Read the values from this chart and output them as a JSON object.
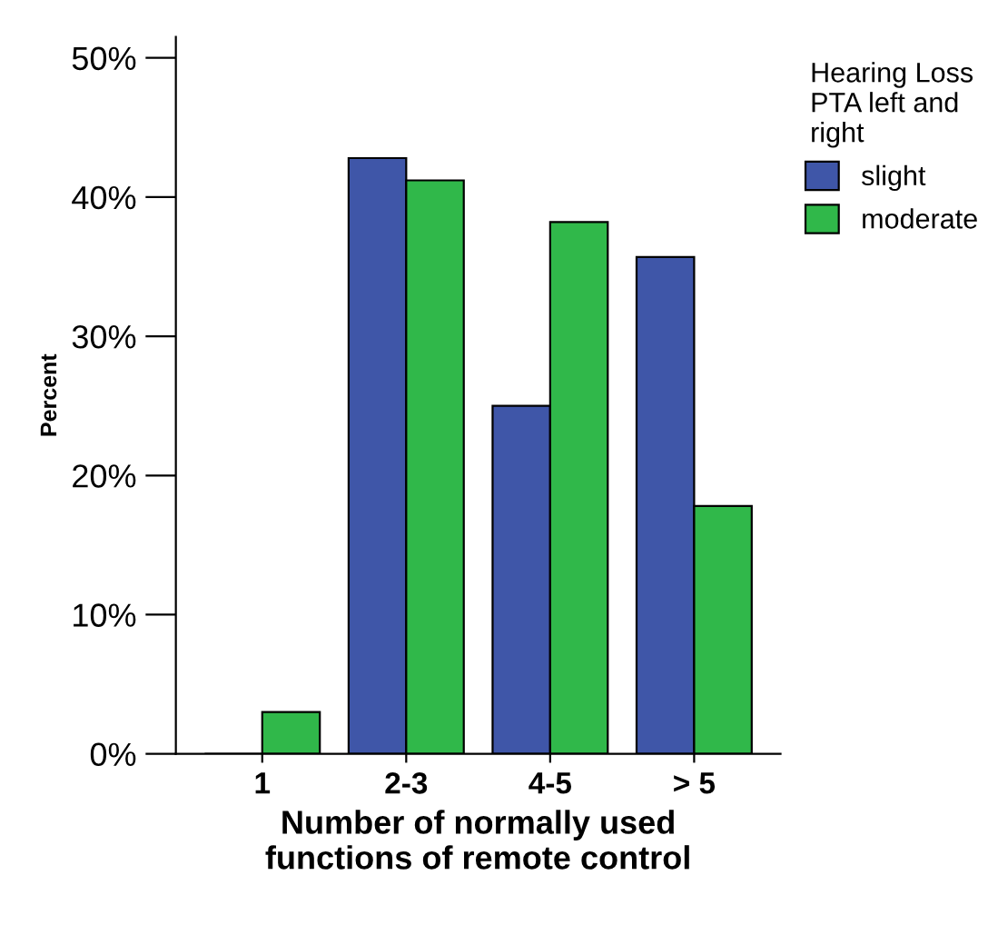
{
  "chart_data": {
    "type": "bar",
    "xlabel": "Number of normally used\nfunctions of remote control",
    "ylabel": "Percent",
    "legend_title": "Hearing Loss\nPTA left and\nright",
    "categories": [
      "1",
      "2-3",
      "4-5",
      "> 5"
    ],
    "series": [
      {
        "name": "slight",
        "color": "#3f56a8",
        "values": [
          0,
          42.8,
          25.0,
          35.7
        ]
      },
      {
        "name": "moderate",
        "color": "#30b84a",
        "values": [
          3.0,
          41.2,
          38.2,
          17.8
        ]
      }
    ],
    "ylim": [
      0,
      51.5
    ],
    "yticks": [
      {
        "value": 0,
        "label": "0%"
      },
      {
        "value": 10,
        "label": "10%"
      },
      {
        "value": 20,
        "label": "20%"
      },
      {
        "value": 30,
        "label": "30%"
      },
      {
        "value": 40,
        "label": "40%"
      },
      {
        "value": 50,
        "label": "50%"
      }
    ],
    "grid": false,
    "legend": "top right"
  }
}
